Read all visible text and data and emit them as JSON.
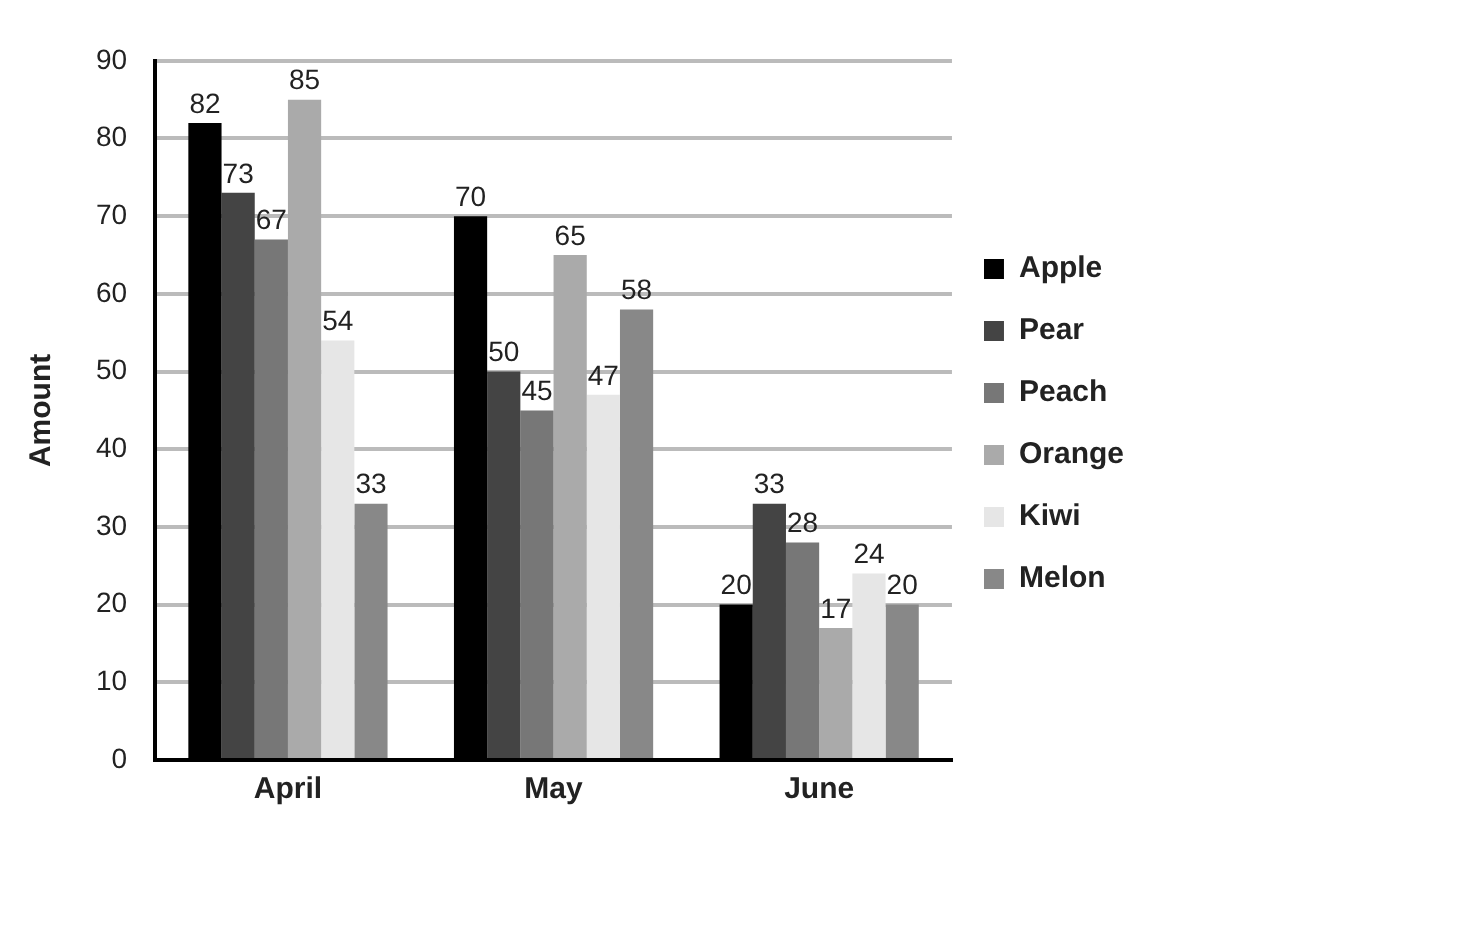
{
  "chart_data": {
    "type": "bar",
    "ylabel": "Amount",
    "categories": [
      "April",
      "May",
      "June"
    ],
    "series": [
      {
        "name": "Apple",
        "color": "#000000",
        "values": [
          82,
          70,
          20
        ]
      },
      {
        "name": "Pear",
        "color": "#444444",
        "values": [
          73,
          50,
          33
        ]
      },
      {
        "name": "Peach",
        "color": "#777777",
        "values": [
          67,
          45,
          28
        ]
      },
      {
        "name": "Orange",
        "color": "#aaaaaa",
        "values": [
          85,
          65,
          17
        ]
      },
      {
        "name": "Kiwi",
        "color": "#e6e6e6",
        "values": [
          54,
          47,
          24
        ]
      },
      {
        "name": "Melon",
        "color": "#888888",
        "values": [
          33,
          58,
          20
        ]
      }
    ],
    "ylim": [
      0,
      90
    ],
    "yticks": [
      0,
      10,
      20,
      30,
      40,
      50,
      60,
      70,
      80,
      90
    ],
    "grid": "y",
    "legend": "right",
    "data_labels": true
  }
}
